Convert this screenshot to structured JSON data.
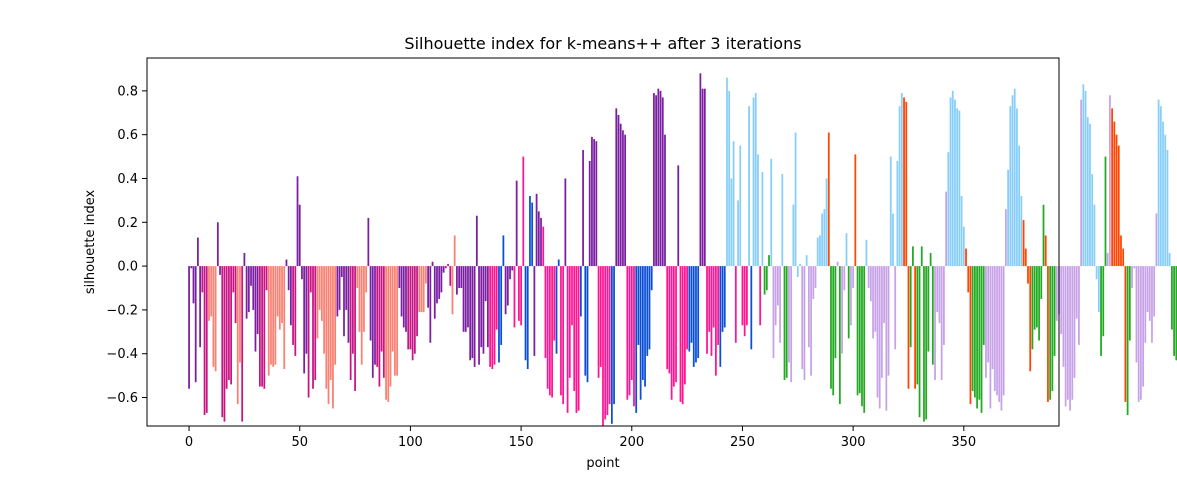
{
  "chart_data": {
    "type": "bar",
    "title": "Silhouette index for k-means++ after 3 iterations",
    "xlabel": "point",
    "ylabel": "silhouette index",
    "xlim": [
      -19,
      393
    ],
    "ylim": [
      -0.73,
      0.95
    ],
    "xticks": [
      0,
      50,
      100,
      150,
      200,
      250,
      300,
      350
    ],
    "yticks": [
      -0.6,
      -0.4,
      -0.2,
      0.0,
      0.2,
      0.4,
      0.6,
      0.8
    ],
    "ytick_labels": [
      "−0.6",
      "−0.4",
      "−0.2",
      "0.0",
      "0.2",
      "0.4",
      "0.6",
      "0.8"
    ],
    "grid": false,
    "legend": false,
    "cluster_colors": [
      "#7b1fa2",
      "#c71585",
      "#fa8072",
      "#ff1493",
      "#0b4fd6",
      "#87cefa",
      "#ff4500",
      "#22aa22",
      "#c8a2e8"
    ],
    "values": [
      -0.56,
      -0.01,
      -0.17,
      -0.53,
      0.13,
      -0.37,
      -0.12,
      -0.68,
      -0.67,
      -0.25,
      -0.23,
      -0.46,
      -0.48,
      0.2,
      -0.04,
      -0.69,
      -0.71,
      -0.56,
      -0.52,
      -0.54,
      -0.12,
      -0.26,
      -0.63,
      -0.44,
      -0.71,
      0.06,
      -0.24,
      -0.21,
      -0.09,
      -0.2,
      -0.39,
      -0.31,
      -0.55,
      -0.55,
      -0.56,
      -0.11,
      -0.5,
      -0.45,
      -0.46,
      -0.45,
      -0.23,
      -0.29,
      -0.26,
      -0.47,
      0.03,
      -0.11,
      -0.27,
      -0.36,
      -0.41,
      0.41,
      0.28,
      -0.06,
      -0.49,
      -0.4,
      -0.6,
      -0.12,
      -0.56,
      -0.52,
      -0.33,
      -0.2,
      -0.25,
      -0.4,
      -0.56,
      -0.63,
      -0.52,
      -0.65,
      -0.45,
      -0.23,
      -0.2,
      -0.05,
      -0.32,
      -0.2,
      -0.35,
      -0.52,
      -0.4,
      -0.57,
      -0.1,
      -0.3,
      -0.45,
      -0.3,
      -0.12,
      0.22,
      -0.34,
      -0.51,
      -0.45,
      -0.46,
      -0.55,
      -0.39,
      -0.51,
      -0.61,
      -0.62,
      -0.55,
      -0.39,
      -0.5,
      -0.5,
      -0.1,
      -0.23,
      -0.28,
      -0.3,
      -0.38,
      -0.38,
      -0.43,
      -0.4,
      -0.32,
      -0.21,
      -0.21,
      -0.21,
      -0.08,
      -0.19,
      -0.35,
      0.02,
      -0.24,
      -0.17,
      -0.15,
      -0.12,
      -0.03,
      -0.01,
      0.01,
      -0.09,
      -0.22,
      0.14,
      -0.13,
      -0.1,
      -0.1,
      -0.3,
      -0.3,
      -0.28,
      -0.43,
      -0.42,
      -0.46,
      0.23,
      -0.45,
      -0.37,
      -0.4,
      -0.16,
      -0.37,
      -0.46,
      -0.47,
      -0.45,
      -0.29,
      -0.44,
      -0.36,
      0.14,
      -0.22,
      -0.18,
      -0.06,
      -0.02,
      -0.28,
      0.39,
      -0.25,
      -0.27,
      0.5,
      -0.43,
      -0.47,
      0.32,
      0.29,
      -0.41,
      0.33,
      0.25,
      0.22,
      0.18,
      -0.42,
      -0.56,
      -0.59,
      -0.6,
      -0.34,
      -0.4,
      0.03,
      -0.59,
      -0.63,
      0.4,
      -0.67,
      -0.51,
      -0.27,
      -0.57,
      -0.67,
      -0.66,
      -0.23,
      0.53,
      -0.5,
      -0.53,
      0.48,
      0.59,
      0.58,
      0.57,
      -0.51,
      -0.46,
      -0.73,
      -0.7,
      -0.68,
      -0.63,
      -0.72,
      -0.63,
      0.72,
      0.69,
      0.65,
      0.62,
      0.6,
      -0.61,
      -0.59,
      -0.52,
      -0.64,
      -0.67,
      -0.36,
      -0.61,
      -0.52,
      -0.55,
      -0.41,
      -0.38,
      -0.11,
      0.79,
      0.78,
      0.81,
      0.8,
      0.77,
      0.6,
      -0.47,
      -0.49,
      -0.61,
      -0.55,
      -0.53,
      0.46,
      -0.62,
      -0.63,
      -0.54,
      -0.38,
      -0.39,
      -0.35,
      -0.46,
      -0.44,
      -0.42,
      0.88,
      0.81,
      0.81,
      -0.4,
      -0.3,
      -0.41,
      -0.28,
      -0.5,
      -0.36,
      -0.46,
      -0.3,
      -0.28,
      0.86,
      0.8,
      0.4,
      0.57,
      -0.35,
      0.3,
      0.55,
      -0.27,
      -0.32,
      -0.27,
      0.73,
      -0.38,
      0.77,
      0.79,
      0.51,
      -0.27,
      0.43,
      -0.13,
      -0.11,
      0.05,
      0.49,
      -0.42,
      -0.27,
      -0.18,
      -0.35,
      0.42,
      -0.52,
      -0.51,
      -0.44,
      -0.53,
      0.28,
      0.61,
      -0.05,
      0.01,
      -0.47,
      -0.52,
      0.05,
      -0.37,
      -0.5,
      -0.15,
      -0.1,
      0.13,
      0.14,
      0.24,
      0.26,
      0.4,
      0.61,
      -0.56,
      -0.59,
      -0.42,
      0.02,
      -0.63,
      -0.4,
      -0.11,
      0.15,
      -0.33,
      -0.27,
      -0.1,
      0.51,
      -0.59,
      -0.58,
      -0.64,
      -0.67,
      0.12,
      -0.1,
      -0.16,
      -0.33,
      -0.3,
      -0.6,
      -0.65,
      -0.51,
      -0.26,
      -0.66,
      -0.5,
      0.5,
      0.24,
      -0.38,
      0.48,
      0.73,
      0.79,
      0.77,
      0.75,
      -0.56,
      -0.37,
      0.09,
      -0.56,
      -0.54,
      -0.69,
      0.09,
      -0.71,
      -0.7,
      -0.39,
      0.06,
      -0.45,
      -0.52,
      -0.21,
      -0.26,
      -0.52,
      -0.36,
      0.34,
      0.52,
      0.77,
      0.8,
      0.76,
      0.72,
      0.71,
      0.32,
      0.18,
      0.08,
      -0.12,
      -0.63,
      -0.57,
      -0.6,
      -0.65,
      -0.61,
      -0.67,
      -0.36,
      -0.51,
      -0.44,
      -0.65,
      -0.47,
      -0.57,
      -0.59,
      -0.62,
      -0.66,
      -0.59,
      0.26,
      0.44,
      0.73,
      0.78,
      0.81,
      0.72,
      0.55,
      0.32,
      0.21,
      0.08,
      -0.08,
      -0.48,
      -0.38,
      -0.29,
      -0.28,
      -0.34,
      -0.15,
      0.28,
      0.14,
      -0.62,
      -0.61,
      -0.57,
      -0.41,
      -0.25,
      -0.22,
      -0.31,
      -0.46,
      -0.64,
      -0.61,
      -0.66,
      -0.61,
      -0.51,
      -0.24,
      -0.36,
      0.76,
      0.83,
      0.8,
      0.68,
      0.65,
      0.42,
      0.28,
      -0.06,
      -0.21,
      -0.41,
      -0.32,
      0.5,
      0.06,
      0.78,
      0.72,
      0.66,
      0.6,
      0.55,
      0.14,
      0.08,
      -0.62,
      -0.68,
      -0.34,
      -0.1,
      -0.01,
      -0.44,
      -0.62,
      -0.61,
      -0.55,
      -0.35,
      -0.21,
      -0.25,
      -0.35,
      -0.23,
      0.24,
      0.76,
      0.73,
      0.66,
      0.6,
      0.53,
      0.06,
      -0.29,
      -0.41,
      -0.43,
      -0.54,
      -0.18,
      -0.25,
      -0.26,
      -0.51,
      0.62,
      0.48,
      0.42,
      0.17
    ],
    "colors": [
      "#7b1fa2",
      "#7b1fa2",
      "#7b1fa2",
      "#7b1fa2",
      "#7b1fa2",
      "#7b1fa2",
      "#c71585",
      "#c71585",
      "#c71585",
      "#fa8072",
      "#fa8072",
      "#fa8072",
      "#fa8072",
      "#7b1fa2",
      "#7b1fa2",
      "#c71585",
      "#c71585",
      "#c71585",
      "#c71585",
      "#c71585",
      "#c71585",
      "#c71585",
      "#fa8072",
      "#fa8072",
      "#c71585",
      "#7b1fa2",
      "#7b1fa2",
      "#7b1fa2",
      "#7b1fa2",
      "#7b1fa2",
      "#7b1fa2",
      "#7b1fa2",
      "#c71585",
      "#c71585",
      "#c71585",
      "#c71585",
      "#fa8072",
      "#fa8072",
      "#fa8072",
      "#fa8072",
      "#fa8072",
      "#fa8072",
      "#fa8072",
      "#fa8072",
      "#7b1fa2",
      "#7b1fa2",
      "#7b1fa2",
      "#c71585",
      "#c71585",
      "#7b1fa2",
      "#7b1fa2",
      "#7b1fa2",
      "#7b1fa2",
      "#7b1fa2",
      "#c71585",
      "#c71585",
      "#c71585",
      "#c71585",
      "#fa8072",
      "#fa8072",
      "#fa8072",
      "#fa8072",
      "#fa8072",
      "#fa8072",
      "#fa8072",
      "#fa8072",
      "#fa8072",
      "#7b1fa2",
      "#7b1fa2",
      "#7b1fa2",
      "#7b1fa2",
      "#7b1fa2",
      "#7b1fa2",
      "#c71585",
      "#c71585",
      "#c71585",
      "#fa8072",
      "#fa8072",
      "#fa8072",
      "#fa8072",
      "#fa8072",
      "#7b1fa2",
      "#7b1fa2",
      "#7b1fa2",
      "#7b1fa2",
      "#c71585",
      "#c71585",
      "#c71585",
      "#c71585",
      "#fa8072",
      "#fa8072",
      "#fa8072",
      "#fa8072",
      "#fa8072",
      "#fa8072",
      "#7b1fa2",
      "#7b1fa2",
      "#7b1fa2",
      "#7b1fa2",
      "#c71585",
      "#c71585",
      "#c71585",
      "#c71585",
      "#c71585",
      "#fa8072",
      "#fa8072",
      "#fa8072",
      "#fa8072",
      "#7b1fa2",
      "#7b1fa2",
      "#7b1fa2",
      "#7b1fa2",
      "#7b1fa2",
      "#7b1fa2",
      "#7b1fa2",
      "#7b1fa2",
      "#c71585",
      "#c71585",
      "#c71585",
      "#fa8072",
      "#fa8072",
      "#7b1fa2",
      "#7b1fa2",
      "#7b1fa2",
      "#7b1fa2",
      "#7b1fa2",
      "#7b1fa2",
      "#7b1fa2",
      "#7b1fa2",
      "#7b1fa2",
      "#7b1fa2",
      "#7b1fa2",
      "#7b1fa2",
      "#7b1fa2",
      "#7b1fa2",
      "#7b1fa2",
      "#ff1493",
      "#ff1493",
      "#ff1493",
      "#ff1493",
      "#0b4fd6",
      "#0b4fd6",
      "#0b4fd6",
      "#7b1fa2",
      "#7b1fa2",
      "#7b1fa2",
      "#7b1fa2",
      "#ff1493",
      "#7b1fa2",
      "#ff1493",
      "#ff1493",
      "#ff1493",
      "#0b4fd6",
      "#0b4fd6",
      "#0b4fd6",
      "#0b4fd6",
      "#7b1fa2",
      "#7b1fa2",
      "#7b1fa2",
      "#7b1fa2",
      "#ff1493",
      "#ff1493",
      "#ff1493",
      "#ff1493",
      "#ff1493",
      "#ff1493",
      "#0b4fd6",
      "#0b4fd6",
      "#ff1493",
      "#ff1493",
      "#7b1fa2",
      "#ff1493",
      "#ff1493",
      "#ff1493",
      "#ff1493",
      "#ff1493",
      "#ff1493",
      "#0b4fd6",
      "#7b1fa2",
      "#0b4fd6",
      "#0b4fd6",
      "#7b1fa2",
      "#7b1fa2",
      "#7b1fa2",
      "#7b1fa2",
      "#ff1493",
      "#ff1493",
      "#ff1493",
      "#ff1493",
      "#ff1493",
      "#ff1493",
      "#0b4fd6",
      "#0b4fd6",
      "#7b1fa2",
      "#7b1fa2",
      "#7b1fa2",
      "#7b1fa2",
      "#7b1fa2",
      "#ff1493",
      "#ff1493",
      "#ff1493",
      "#ff1493",
      "#0b4fd6",
      "#0b4fd6",
      "#0b4fd6",
      "#0b4fd6",
      "#0b4fd6",
      "#0b4fd6",
      "#0b4fd6",
      "#0b4fd6",
      "#7b1fa2",
      "#7b1fa2",
      "#7b1fa2",
      "#7b1fa2",
      "#7b1fa2",
      "#7b1fa2",
      "#ff1493",
      "#ff1493",
      "#ff1493",
      "#ff1493",
      "#ff1493",
      "#7b1fa2",
      "#ff1493",
      "#ff1493",
      "#ff1493",
      "#ff1493",
      "#0b4fd6",
      "#0b4fd6",
      "#0b4fd6",
      "#0b4fd6",
      "#0b4fd6",
      "#7b1fa2",
      "#7b1fa2",
      "#7b1fa2",
      "#ff1493",
      "#ff1493",
      "#ff1493",
      "#ff1493",
      "#ff1493",
      "#ff1493",
      "#0b4fd6",
      "#0b4fd6",
      "#0b4fd6",
      "#87cefa",
      "#87cefa",
      "#87cefa",
      "#87cefa",
      "#ff1493",
      "#87cefa",
      "#87cefa",
      "#ff1493",
      "#ff1493",
      "#ff1493",
      "#87cefa",
      "#0b4fd6",
      "#87cefa",
      "#87cefa",
      "#87cefa",
      "#ff1493",
      "#87cefa",
      "#22aa22",
      "#22aa22",
      "#22aa22",
      "#87cefa",
      "#c8a2e8",
      "#c8a2e8",
      "#c8a2e8",
      "#c8a2e8",
      "#87cefa",
      "#22aa22",
      "#22aa22",
      "#c8a2e8",
      "#c8a2e8",
      "#87cefa",
      "#87cefa",
      "#87cefa",
      "#87cefa",
      "#c8a2e8",
      "#c8a2e8",
      "#87cefa",
      "#c8a2e8",
      "#c8a2e8",
      "#c8a2e8",
      "#c8a2e8",
      "#87cefa",
      "#87cefa",
      "#87cefa",
      "#87cefa",
      "#87cefa",
      "#ff4500",
      "#22aa22",
      "#22aa22",
      "#22aa22",
      "#c8a2e8",
      "#22aa22",
      "#c8a2e8",
      "#c8a2e8",
      "#87cefa",
      "#22aa22",
      "#c8a2e8",
      "#c8a2e8",
      "#ff4500",
      "#22aa22",
      "#22aa22",
      "#22aa22",
      "#22aa22",
      "#87cefa",
      "#c8a2e8",
      "#c8a2e8",
      "#c8a2e8",
      "#c8a2e8",
      "#c8a2e8",
      "#c8a2e8",
      "#c8a2e8",
      "#c8a2e8",
      "#c8a2e8",
      "#c8a2e8",
      "#87cefa",
      "#87cefa",
      "#c8a2e8",
      "#87cefa",
      "#87cefa",
      "#87cefa",
      "#ff4500",
      "#ff4500",
      "#ff4500",
      "#22aa22",
      "#22aa22",
      "#ff4500",
      "#22aa22",
      "#22aa22",
      "#22aa22",
      "#22aa22",
      "#22aa22",
      "#22aa22",
      "#22aa22",
      "#22aa22",
      "#c8a2e8",
      "#c8a2e8",
      "#c8a2e8",
      "#c8a2e8",
      "#c8a2e8",
      "#c8a2e8",
      "#87cefa",
      "#87cefa",
      "#87cefa",
      "#87cefa",
      "#87cefa",
      "#87cefa",
      "#87cefa",
      "#87cefa",
      "#ff4500",
      "#ff4500",
      "#ff4500",
      "#22aa22",
      "#22aa22",
      "#22aa22",
      "#22aa22",
      "#22aa22",
      "#22aa22",
      "#c8a2e8",
      "#c8a2e8",
      "#c8a2e8",
      "#c8a2e8",
      "#c8a2e8",
      "#c8a2e8",
      "#c8a2e8",
      "#c8a2e8",
      "#c8a2e8",
      "#c8a2e8",
      "#87cefa",
      "#87cefa",
      "#87cefa",
      "#87cefa",
      "#87cefa",
      "#87cefa",
      "#87cefa",
      "#ff4500",
      "#ff4500",
      "#ff4500",
      "#ff4500",
      "#22aa22",
      "#22aa22",
      "#22aa22",
      "#22aa22",
      "#22aa22",
      "#22aa22",
      "#ff4500",
      "#ff4500",
      "#22aa22",
      "#22aa22",
      "#22aa22",
      "#c8a2e8",
      "#c8a2e8",
      "#c8a2e8",
      "#c8a2e8",
      "#c8a2e8",
      "#c8a2e8",
      "#c8a2e8",
      "#c8a2e8",
      "#c8a2e8",
      "#c8a2e8",
      "#c8a2e8",
      "#c8a2e8",
      "#87cefa",
      "#87cefa",
      "#87cefa",
      "#87cefa",
      "#87cefa",
      "#87cefa",
      "#87cefa",
      "#87cefa",
      "#22aa22",
      "#22aa22",
      "#22aa22",
      "#c8a2e8",
      "#c8a2e8",
      "#ff4500",
      "#ff4500",
      "#ff4500",
      "#ff4500",
      "#ff4500",
      "#ff4500",
      "#ff4500",
      "#22aa22",
      "#22aa22",
      "#c8a2e8",
      "#c8a2e8",
      "#c8a2e8",
      "#c8a2e8",
      "#c8a2e8",
      "#c8a2e8",
      "#c8a2e8",
      "#c8a2e8",
      "#c8a2e8",
      "#c8a2e8",
      "#c8a2e8",
      "#c8a2e8",
      "#87cefa",
      "#87cefa",
      "#87cefa",
      "#87cefa",
      "#87cefa",
      "#87cefa",
      "#22aa22",
      "#22aa22",
      "#22aa22",
      "#22aa22",
      "#22aa22",
      "#22aa22",
      "#22aa22",
      "#ff4500",
      "#ff4500",
      "#ff4500",
      "#ff4500"
    ]
  }
}
